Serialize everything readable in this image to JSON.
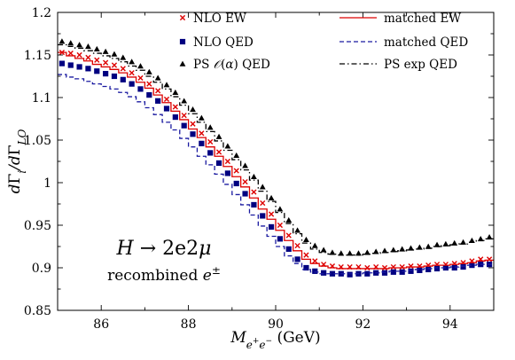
{
  "chart_data": {
    "type": "scatter",
    "xlabel": "M_{e^+e^-} (GeV)",
    "ylabel": "dΓ_i/dΓ_LO",
    "xlim": [
      85,
      95
    ],
    "ylim": [
      0.85,
      1.2
    ],
    "x_ticks": [
      "86",
      "88",
      "90",
      "92",
      "94"
    ],
    "y_ticks": [
      "0.85",
      "0.9",
      "0.95",
      "1",
      "1.05",
      "1.1",
      "1.15",
      "1.2"
    ],
    "annotation": {
      "process": "H → 2e2μ",
      "note": "recombined e±"
    },
    "legend_position": "top",
    "x": [
      85.0,
      85.2,
      85.4,
      85.6,
      85.8,
      86.0,
      86.2,
      86.4,
      86.6,
      86.8,
      87.0,
      87.2,
      87.4,
      87.6,
      87.8,
      88.0,
      88.2,
      88.4,
      88.6,
      88.8,
      89.0,
      89.2,
      89.4,
      89.6,
      89.8,
      90.0,
      90.2,
      90.4,
      90.6,
      90.8,
      91.0,
      91.2,
      91.4,
      91.6,
      91.8,
      92.0,
      92.2,
      92.4,
      92.6,
      92.8,
      93.0,
      93.2,
      93.4,
      93.6,
      93.8,
      94.0,
      94.2,
      94.4,
      94.6,
      94.8
    ],
    "series": [
      {
        "name": "NLO EW",
        "marker": "cross",
        "color": "#dd0000",
        "values": [
          1.153,
          1.152,
          1.15,
          1.147,
          1.144,
          1.141,
          1.138,
          1.134,
          1.129,
          1.123,
          1.116,
          1.108,
          1.098,
          1.089,
          1.079,
          1.069,
          1.058,
          1.048,
          1.036,
          1.025,
          1.014,
          1.001,
          0.989,
          0.976,
          0.963,
          0.95,
          0.938,
          0.926,
          0.915,
          0.908,
          0.904,
          0.902,
          0.901,
          0.901,
          0.901,
          0.9,
          0.901,
          0.9,
          0.901,
          0.901,
          0.902,
          0.902,
          0.903,
          0.904,
          0.904,
          0.905,
          0.906,
          0.908,
          0.91,
          0.91
        ]
      },
      {
        "name": "NLO QED",
        "marker": "square",
        "color": "#000080",
        "values": [
          1.14,
          1.138,
          1.136,
          1.134,
          1.131,
          1.128,
          1.125,
          1.121,
          1.116,
          1.11,
          1.103,
          1.096,
          1.087,
          1.077,
          1.067,
          1.057,
          1.046,
          1.035,
          1.023,
          1.011,
          0.999,
          0.987,
          0.974,
          0.961,
          0.948,
          0.934,
          0.922,
          0.91,
          0.9,
          0.896,
          0.894,
          0.893,
          0.893,
          0.892,
          0.893,
          0.893,
          0.894,
          0.894,
          0.895,
          0.895,
          0.896,
          0.897,
          0.898,
          0.899,
          0.9,
          0.9,
          0.901,
          0.903,
          0.904,
          0.904
        ]
      },
      {
        "name": "PS 𝒪(α) QED",
        "marker": "triangle",
        "color": "#000000",
        "values": [
          1.166,
          1.164,
          1.162,
          1.16,
          1.157,
          1.154,
          1.151,
          1.147,
          1.142,
          1.137,
          1.13,
          1.123,
          1.115,
          1.106,
          1.096,
          1.086,
          1.076,
          1.065,
          1.054,
          1.043,
          1.032,
          1.02,
          1.007,
          0.995,
          0.982,
          0.969,
          0.956,
          0.944,
          0.933,
          0.926,
          0.921,
          0.918,
          0.917,
          0.917,
          0.917,
          0.918,
          0.919,
          0.92,
          0.921,
          0.922,
          0.923,
          0.924,
          0.925,
          0.927,
          0.928,
          0.929,
          0.93,
          0.932,
          0.934,
          0.936
        ]
      },
      {
        "name": "matched EW",
        "marker": "step",
        "dash": "solid",
        "color": "#dd0000",
        "values": [
          1.153,
          1.149,
          1.146,
          1.143,
          1.139,
          1.136,
          1.133,
          1.129,
          1.124,
          1.118,
          1.111,
          1.103,
          1.094,
          1.084,
          1.074,
          1.063,
          1.053,
          1.042,
          1.031,
          1.019,
          1.007,
          0.995,
          0.982,
          0.969,
          0.957,
          0.944,
          0.932,
          0.92,
          0.91,
          0.905,
          0.902,
          0.9,
          0.899,
          0.899,
          0.899,
          0.899,
          0.899,
          0.899,
          0.9,
          0.9,
          0.901,
          0.901,
          0.902,
          0.903,
          0.903,
          0.904,
          0.905,
          0.906,
          0.908,
          0.909
        ]
      },
      {
        "name": "matched QED",
        "marker": "step",
        "dash": "dashed",
        "color": "#1a1aa0",
        "values": [
          1.127,
          1.124,
          1.122,
          1.119,
          1.116,
          1.113,
          1.11,
          1.106,
          1.101,
          1.095,
          1.088,
          1.08,
          1.071,
          1.062,
          1.052,
          1.042,
          1.031,
          1.021,
          1.01,
          0.998,
          0.986,
          0.974,
          0.962,
          0.949,
          0.937,
          0.925,
          0.914,
          0.905,
          0.898,
          0.895,
          0.893,
          0.893,
          0.893,
          0.893,
          0.893,
          0.894,
          0.894,
          0.895,
          0.896,
          0.896,
          0.897,
          0.898,
          0.899,
          0.9,
          0.9,
          0.901,
          0.902,
          0.903,
          0.904,
          0.904
        ]
      },
      {
        "name": "PS exp QED",
        "marker": "step",
        "dash": "dashdot",
        "color": "#000000",
        "values": [
          1.162,
          1.16,
          1.158,
          1.155,
          1.152,
          1.149,
          1.146,
          1.142,
          1.137,
          1.132,
          1.125,
          1.118,
          1.11,
          1.101,
          1.091,
          1.081,
          1.071,
          1.06,
          1.049,
          1.038,
          1.027,
          1.015,
          1.003,
          0.99,
          0.978,
          0.965,
          0.952,
          0.94,
          0.929,
          0.922,
          0.918,
          0.916,
          0.915,
          0.915,
          0.915,
          0.916,
          0.917,
          0.918,
          0.919,
          0.92,
          0.921,
          0.922,
          0.923,
          0.925,
          0.926,
          0.927,
          0.928,
          0.93,
          0.932,
          0.934
        ]
      }
    ]
  }
}
